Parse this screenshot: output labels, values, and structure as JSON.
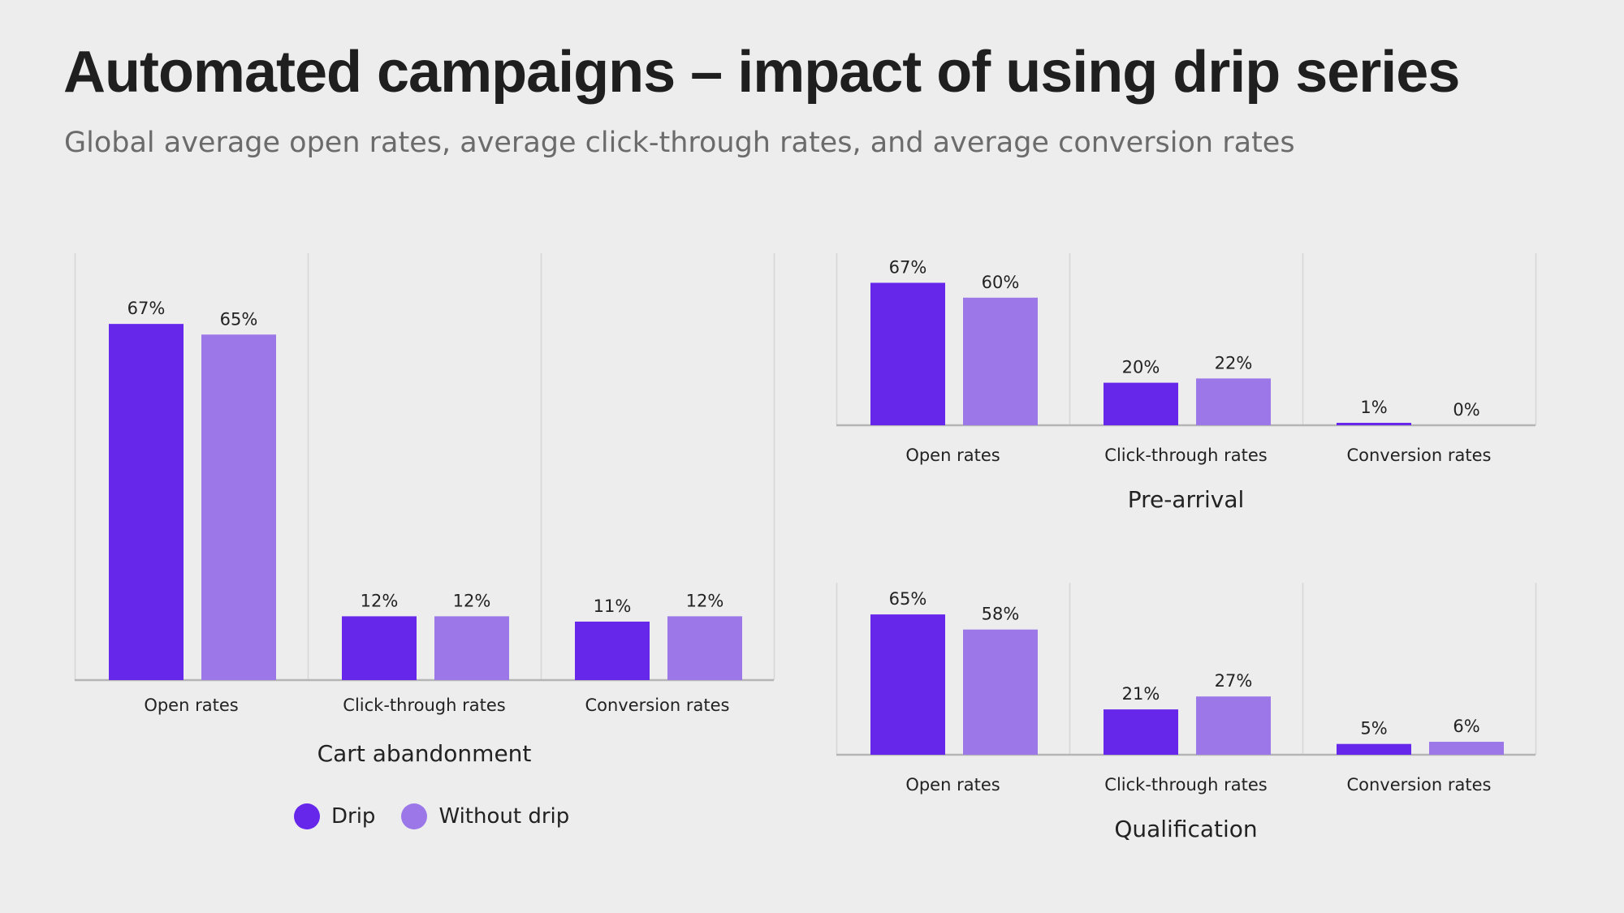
{
  "title": "Automated campaigns – impact of using drip series",
  "subtitle": "Global average open rates, average click-through rates, and average conversion rates",
  "colors": {
    "drip": "#6627eb",
    "without_drip": "#9b77e8",
    "grid": "#d6d6d6",
    "axis": "#b5b5b5",
    "text": "#222222"
  },
  "legend": [
    {
      "name": "Drip",
      "color": "#6627eb"
    },
    {
      "name": "Without drip",
      "color": "#9b77e8"
    }
  ],
  "chart_data": [
    {
      "type": "bar",
      "title": "Cart abandonment",
      "categories": [
        "Open rates",
        "Click-through rates",
        "Conversion rates"
      ],
      "series": [
        {
          "name": "Drip",
          "values": [
            67,
            12,
            11
          ],
          "labels": [
            "67%",
            "12%",
            "11%"
          ]
        },
        {
          "name": "Without drip",
          "values": [
            65,
            12,
            12
          ],
          "labels": [
            "65%",
            "12%",
            "12%"
          ]
        }
      ],
      "ylim": [
        0,
        80
      ],
      "grid": "vertical separators",
      "legend": "bottom"
    },
    {
      "type": "bar",
      "title": "Pre-arrival",
      "categories": [
        "Open rates",
        "Click-through rates",
        "Conversion rates"
      ],
      "series": [
        {
          "name": "Drip",
          "values": [
            67,
            20,
            1
          ],
          "labels": [
            "67%",
            "20%",
            "1%"
          ]
        },
        {
          "name": "Without drip",
          "values": [
            60,
            22,
            0
          ],
          "labels": [
            "60%",
            "22%",
            "0%"
          ]
        }
      ],
      "ylim": [
        0,
        80
      ],
      "grid": "vertical separators"
    },
    {
      "type": "bar",
      "title": "Qualification",
      "categories": [
        "Open rates",
        "Click-through rates",
        "Conversion rates"
      ],
      "series": [
        {
          "name": "Drip",
          "values": [
            65,
            21,
            5
          ],
          "labels": [
            "65%",
            "21%",
            "5%"
          ]
        },
        {
          "name": "Without drip",
          "values": [
            58,
            27,
            6
          ],
          "labels": [
            "58%",
            "27%",
            "6%"
          ]
        }
      ],
      "ylim": [
        0,
        80
      ],
      "grid": "vertical separators"
    }
  ]
}
